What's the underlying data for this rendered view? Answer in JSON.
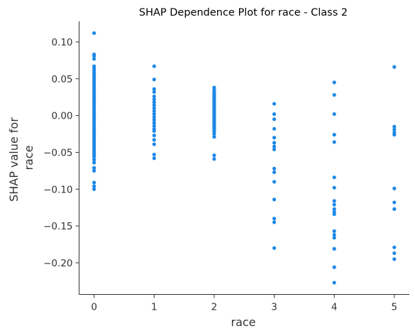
{
  "chart_data": {
    "type": "scatter",
    "title": "SHAP Dependence Plot for race - Class 2",
    "xlabel": "race",
    "ylabel": [
      "SHAP value for",
      "race"
    ],
    "xlim": [
      -0.25,
      5.25
    ],
    "ylim": [
      -0.243,
      0.128
    ],
    "x_ticks": [
      0,
      1,
      2,
      3,
      4,
      5
    ],
    "x_tick_labels": [
      "0",
      "1",
      "2",
      "3",
      "4",
      "5"
    ],
    "y_ticks": [
      0.1,
      0.05,
      0.0,
      -0.05,
      -0.1,
      -0.15,
      -0.2
    ],
    "y_tick_labels": [
      "0.10",
      "0.05",
      "0.00",
      "−0.05",
      "−0.10",
      "−0.15",
      "−0.20"
    ],
    "grid": false,
    "point_color": "#1e88e5",
    "series": [
      {
        "x": 0,
        "values": [
          0.112,
          0.083,
          0.081,
          0.077,
          0.067,
          0.064,
          0.061,
          0.058,
          0.055,
          0.052,
          0.049,
          0.046,
          0.043,
          0.04,
          0.037,
          0.034,
          0.031,
          0.028,
          0.025,
          0.022,
          0.019,
          0.016,
          0.013,
          0.01,
          0.007,
          0.004,
          0.001,
          -0.002,
          -0.005,
          -0.008,
          -0.011,
          -0.014,
          -0.017,
          -0.02,
          -0.023,
          -0.026,
          -0.029,
          -0.032,
          -0.035,
          -0.038,
          -0.041,
          -0.044,
          -0.047,
          -0.05,
          -0.053,
          -0.056,
          -0.06,
          -0.064,
          -0.071,
          -0.075,
          -0.091,
          -0.096,
          -0.1
        ]
      },
      {
        "x": 1,
        "values": [
          0.067,
          0.049,
          0.036,
          0.032,
          0.026,
          0.022,
          0.018,
          0.014,
          0.01,
          0.006,
          0.002,
          -0.002,
          -0.006,
          -0.01,
          -0.014,
          -0.018,
          -0.021,
          -0.027,
          -0.033,
          -0.039,
          -0.053,
          -0.058
        ]
      },
      {
        "x": 2,
        "values": [
          0.038,
          0.035,
          0.032,
          0.03,
          0.028,
          0.026,
          0.024,
          0.022,
          0.02,
          0.018,
          0.016,
          0.014,
          0.012,
          0.01,
          0.008,
          0.006,
          0.004,
          0.002,
          0.0,
          -0.002,
          -0.004,
          -0.006,
          -0.008,
          -0.01,
          -0.012,
          -0.014,
          -0.016,
          -0.018,
          -0.02,
          -0.022,
          -0.025,
          -0.029,
          -0.054,
          -0.059
        ]
      },
      {
        "x": 3,
        "values": [
          0.016,
          0.002,
          -0.005,
          -0.018,
          -0.03,
          -0.037,
          -0.042,
          -0.046,
          -0.072,
          -0.077,
          -0.09,
          -0.114,
          -0.14,
          -0.145,
          -0.18
        ]
      },
      {
        "x": 4,
        "values": [
          0.045,
          0.028,
          0.002,
          -0.026,
          -0.036,
          -0.084,
          -0.098,
          -0.116,
          -0.121,
          -0.127,
          -0.131,
          -0.134,
          -0.157,
          -0.162,
          -0.166,
          -0.181,
          -0.206,
          -0.227
        ]
      },
      {
        "x": 5,
        "values": [
          0.066,
          -0.015,
          -0.019,
          -0.023,
          -0.026,
          -0.099,
          -0.118,
          -0.127,
          -0.179,
          -0.187,
          -0.195
        ]
      }
    ]
  }
}
